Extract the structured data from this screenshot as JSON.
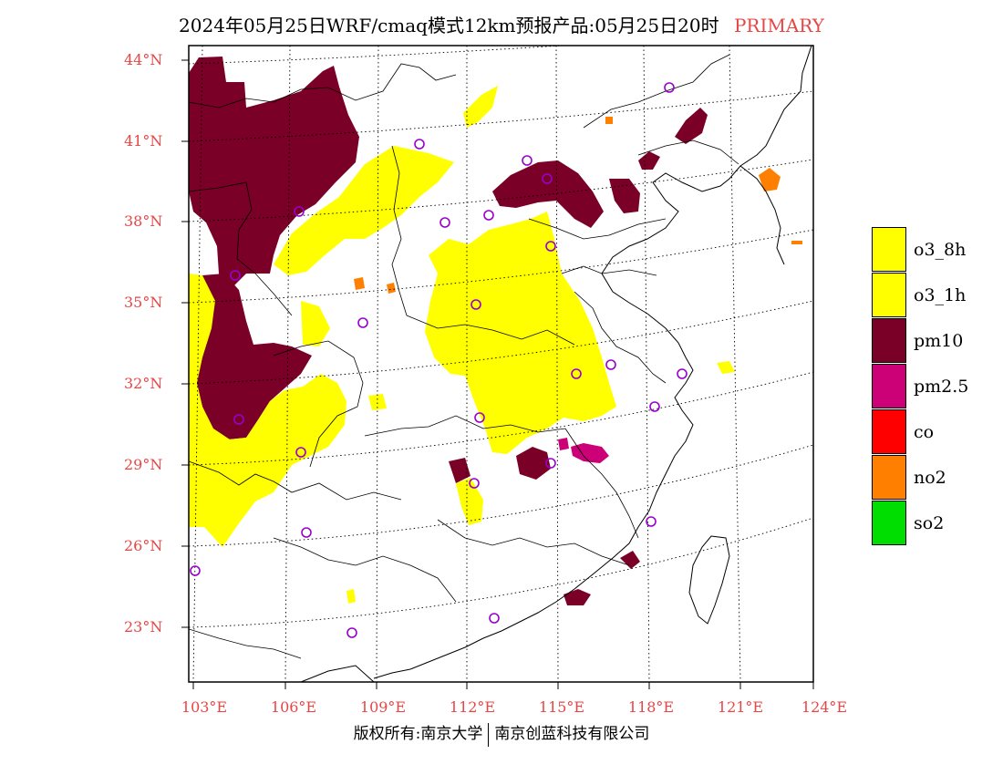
{
  "title": {
    "text": "2024年05月25日WRF/cmaq模式12km预报产品:05月25日20时",
    "tag": "PRIMARY"
  },
  "map": {
    "lat_labels": [
      "44°N",
      "41°N",
      "38°N",
      "35°N",
      "32°N",
      "29°N",
      "26°N",
      "23°N"
    ],
    "lon_labels": [
      "103°E",
      "106°E",
      "109°E",
      "112°E",
      "115°E",
      "118°E",
      "121°E",
      "124°E"
    ],
    "label_color": "#e84545"
  },
  "legend": {
    "items": [
      {
        "label": "o3_8h",
        "color": "#ffff00"
      },
      {
        "label": "o3_1h",
        "color": "#ffff00"
      },
      {
        "label": "pm10",
        "color": "#7a0027"
      },
      {
        "label": "pm2.5",
        "color": "#cc0077"
      },
      {
        "label": "co",
        "color": "#ff0000"
      },
      {
        "label": "no2",
        "color": "#ff7f00"
      },
      {
        "label": "so2",
        "color": "#00dd00"
      }
    ]
  },
  "footer": {
    "left": "版权所有:南京大学",
    "right": "南京创蓝科技有限公司"
  }
}
